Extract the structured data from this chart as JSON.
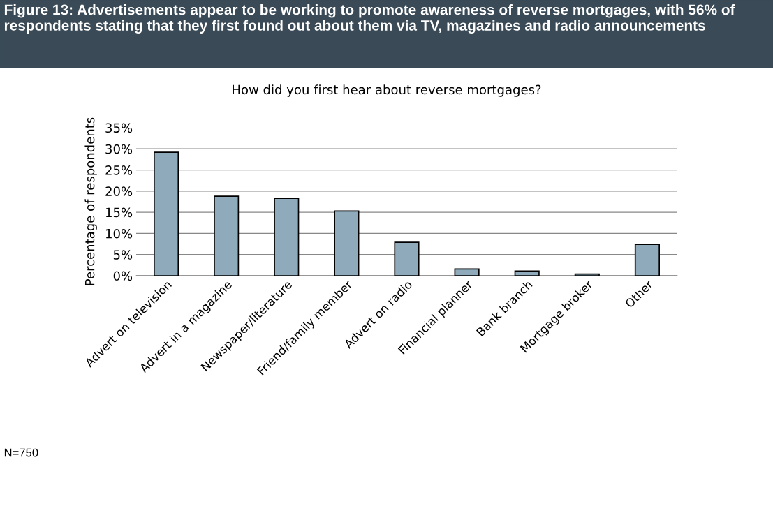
{
  "chart_data": {
    "type": "bar",
    "title": "Figure 13: Advertisements appear to be working to promote awareness of reverse mortgages, with 56% of respondents stating that they first found out about them via TV, magazines and radio announcements",
    "subtitle": "How did you first hear about reverse mortgages?",
    "ylabel": "Percentage of respondents",
    "categories": [
      "Advert on television",
      "Advert in a magazine",
      "Newspaper/literature",
      "Friend/family member",
      "Advert on radio",
      "Financial planner",
      "Bank branch",
      "Mortgage broker",
      "Other"
    ],
    "values": [
      29.2,
      18.8,
      18.3,
      15.3,
      7.9,
      1.6,
      1.1,
      0.4,
      7.4
    ],
    "color": "#8eaabb",
    "ylim": [
      0,
      35
    ],
    "yticks": [
      {
        "value": 0,
        "label": "0%"
      },
      {
        "value": 5,
        "label": "5%"
      },
      {
        "value": 10,
        "label": "10%"
      },
      {
        "value": 15,
        "label": "15%"
      },
      {
        "value": 20,
        "label": "20%"
      },
      {
        "value": 25,
        "label": "25%"
      },
      {
        "value": 30,
        "label": "30%"
      },
      {
        "value": 35,
        "label": "35%"
      }
    ],
    "grid": "y",
    "annotations": [
      "N=750"
    ]
  }
}
